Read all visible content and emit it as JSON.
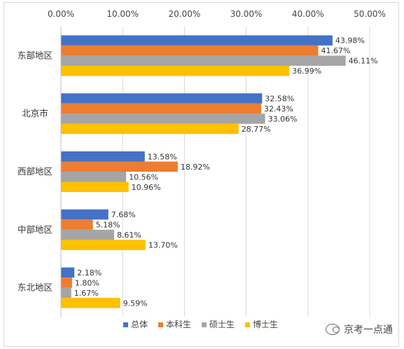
{
  "chart_data": {
    "type": "bar",
    "orientation": "horizontal",
    "categories": [
      "东部地区",
      "北京市",
      "西部地区",
      "中部地区",
      "东北地区"
    ],
    "series": [
      {
        "name": "总体",
        "color": "#4472C4",
        "values": [
          43.98,
          32.58,
          13.58,
          7.68,
          2.18
        ],
        "labels": [
          "43.98%",
          "32.58%",
          "13.58%",
          "7.68%",
          "2.18%"
        ]
      },
      {
        "name": "本科生",
        "color": "#ED7D31",
        "values": [
          41.67,
          32.43,
          18.92,
          5.18,
          1.8
        ],
        "labels": [
          "41.67%",
          "32.43%",
          "18.92%",
          "5.18%",
          "1.80%"
        ]
      },
      {
        "name": "硕士生",
        "color": "#A5A5A5",
        "values": [
          46.11,
          33.06,
          10.56,
          8.61,
          1.67
        ],
        "labels": [
          "46.11%",
          "33.06%",
          "10.56%",
          "8.61%",
          "1.67%"
        ]
      },
      {
        "name": "博士生",
        "color": "#FFC000",
        "values": [
          36.99,
          28.77,
          10.96,
          13.7,
          9.59
        ],
        "labels": [
          "36.99%",
          "28.77%",
          "10.96%",
          "13.70%",
          "9.59%"
        ]
      }
    ],
    "xlim": [
      0,
      50
    ],
    "x_ticks": [
      0,
      10,
      20,
      30,
      40,
      50
    ],
    "x_tick_labels": [
      "0.00%",
      "10.00%",
      "20.00%",
      "30.00%",
      "40.00%",
      "50.00%"
    ],
    "x_axis_position": "top",
    "grid": true,
    "legend_position": "bottom"
  },
  "watermark": {
    "text": "京考一点通",
    "icon": "wechat-icon"
  }
}
